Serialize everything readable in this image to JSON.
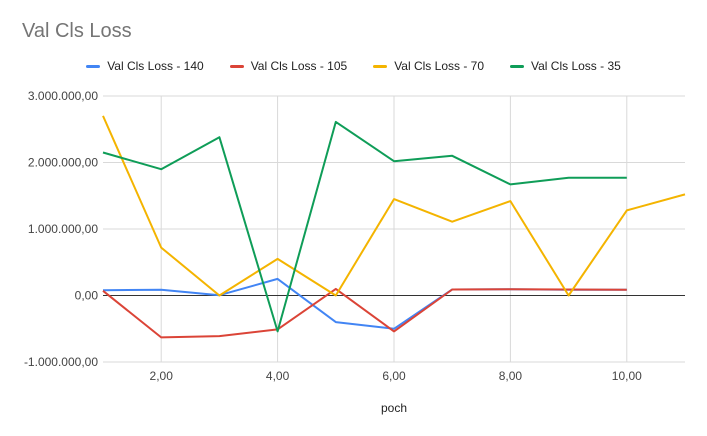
{
  "chart_data": {
    "type": "line",
    "title": "Val Cls Loss",
    "xlabel": "poch",
    "ylabel": "",
    "xlim": [
      1,
      11
    ],
    "ylim": [
      -1000000,
      3000000
    ],
    "grid": true,
    "legend_position": "top",
    "x_ticks": [
      2,
      4,
      6,
      8,
      10
    ],
    "x_tick_labels": [
      "2,00",
      "4,00",
      "6,00",
      "8,00",
      "10,00"
    ],
    "y_ticks": [
      -1000000,
      0,
      1000000,
      2000000,
      3000000
    ],
    "y_tick_labels": [
      "-1.000.000,00",
      "0,00",
      "1.000.000,00",
      "2.000.000,00",
      "3.000.000,00"
    ],
    "series": [
      {
        "name": "Val Cls Loss - 140",
        "color": "#4285f4",
        "x": [
          1,
          2,
          3,
          4,
          5,
          6,
          7,
          8,
          9,
          10
        ],
        "values": [
          80000,
          85000,
          5000,
          250000,
          -400000,
          -500000,
          90000,
          95000,
          85000,
          85000
        ]
      },
      {
        "name": "Val Cls Loss - 105",
        "color": "#db4437",
        "x": [
          1,
          2,
          3,
          4,
          5,
          6,
          7,
          8,
          9,
          10
        ],
        "values": [
          70000,
          -630000,
          -610000,
          -510000,
          100000,
          -540000,
          90000,
          95000,
          90000,
          85000
        ]
      },
      {
        "name": "Val Cls Loss - 70",
        "color": "#f4b400",
        "x": [
          1,
          2,
          3,
          4,
          5,
          6,
          7,
          8,
          9,
          10,
          11
        ],
        "values": [
          2700000,
          720000,
          0,
          550000,
          0,
          1450000,
          1110000,
          1420000,
          0,
          1280000,
          1520000
        ]
      },
      {
        "name": "Val Cls Loss - 35",
        "color": "#0f9d58",
        "x": [
          1,
          2,
          3,
          4,
          5,
          6,
          7,
          8,
          9,
          10
        ],
        "values": [
          2150000,
          1900000,
          2380000,
          -540000,
          2610000,
          2020000,
          2100000,
          1670000,
          1770000,
          1770000
        ]
      }
    ]
  }
}
